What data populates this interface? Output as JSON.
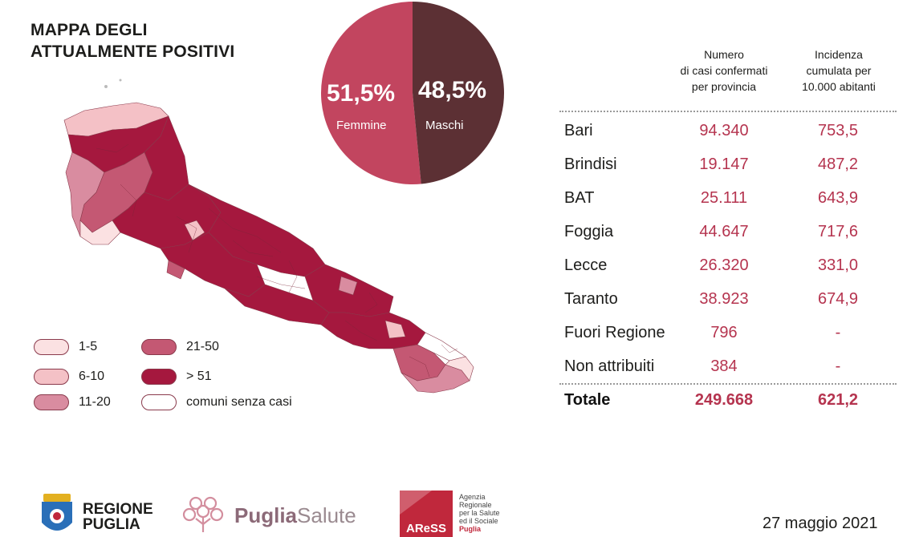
{
  "title": {
    "line1": "MAPPA DEGLI",
    "line2": "ATTUALMENTE POSITIVI"
  },
  "colors": {
    "scale_1_5": "#fbe1e2",
    "scale_6_10": "#f4c1c6",
    "scale_11_20": "#d98ca0",
    "scale_21_50": "#c45873",
    "scale_51_plus": "#a5183e",
    "no_cases": "#ffffff",
    "female": "#c2455f",
    "male": "#5c3034",
    "accent_text": "#b5344f"
  },
  "pie": {
    "female_pct": "51,5%",
    "female_label": "Femmine",
    "male_pct": "48,5%",
    "male_label": "Maschi",
    "female_value": 51.5,
    "male_value": 48.5
  },
  "legend": [
    {
      "label": "1-5",
      "color": "#fbe1e2"
    },
    {
      "label": "6-10",
      "color": "#f4c1c6"
    },
    {
      "label": "11-20",
      "color": "#d98ca0"
    },
    {
      "label": "21-50",
      "color": "#c45873"
    },
    {
      "label": "> 51",
      "color": "#a5183e"
    },
    {
      "label": "comuni senza casi",
      "color": "#ffffff"
    }
  ],
  "table": {
    "header_cases": [
      "Numero",
      "di casi confermati",
      "per provincia"
    ],
    "header_incidence": [
      "Incidenza",
      "cumulata per",
      "10.000 abitanti"
    ],
    "rows": [
      {
        "name": "Bari",
        "cases": "94.340",
        "incidence": "753,5"
      },
      {
        "name": "Brindisi",
        "cases": "19.147",
        "incidence": "487,2"
      },
      {
        "name": "BAT",
        "cases": "25.111",
        "incidence": "643,9"
      },
      {
        "name": "Foggia",
        "cases": "44.647",
        "incidence": "717,6"
      },
      {
        "name": "Lecce",
        "cases": "26.320",
        "incidence": "331,0"
      },
      {
        "name": "Taranto",
        "cases": "38.923",
        "incidence": "674,9"
      },
      {
        "name": "Fuori Regione",
        "cases": "796",
        "incidence": "-"
      },
      {
        "name": "Non attribuiti",
        "cases": "384",
        "incidence": "-"
      }
    ],
    "total": {
      "name": "Totale",
      "cases": "249.668",
      "incidence": "621,2"
    }
  },
  "footer": {
    "regione_line1": "REGIONE",
    "regione_line2": "PUGLIA",
    "puglia_bold": "Puglia",
    "puglia_light": "Salute",
    "aress_logo": "AReSS",
    "aress_lines": [
      "Agenzia",
      "Regionale",
      "per la Salute",
      "ed il Sociale"
    ],
    "aress_highlight": "Puglia",
    "date": "27 maggio 2021"
  }
}
